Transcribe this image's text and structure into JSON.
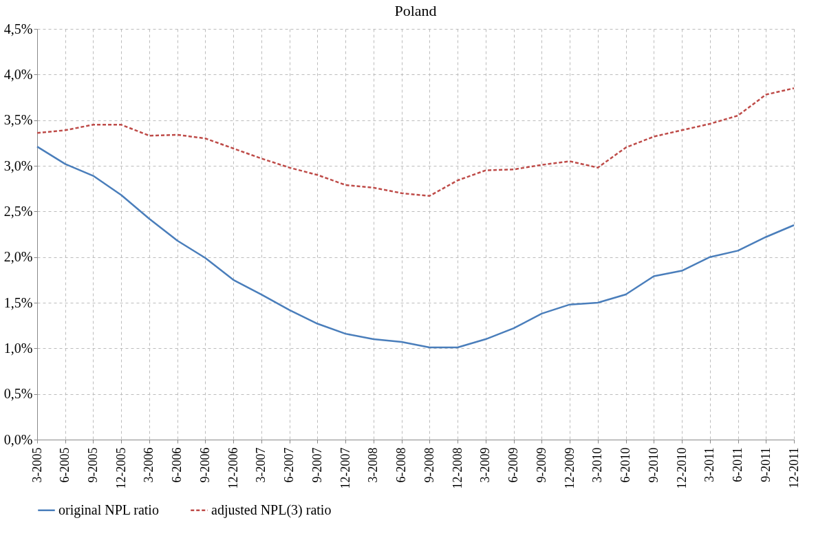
{
  "chart_data": {
    "type": "line",
    "title": "Poland",
    "categories": [
      "3-2005",
      "6-2005",
      "9-2005",
      "12-2005",
      "3-2006",
      "6-2006",
      "9-2006",
      "12-2006",
      "3-2007",
      "6-2007",
      "9-2007",
      "12-2007",
      "3-2008",
      "6-2008",
      "9-2008",
      "12-2008",
      "3-2009",
      "6-2009",
      "9-2009",
      "12-2009",
      "3-2010",
      "6-2010",
      "9-2010",
      "12-2010",
      "3-2011",
      "6-2011",
      "9-2011",
      "12-2011"
    ],
    "series": [
      {
        "name": "original NPL ratio",
        "color": "#4a7ebb",
        "line_style": "solid",
        "values": [
          3.21,
          3.02,
          2.89,
          2.68,
          2.42,
          2.18,
          1.99,
          1.75,
          1.59,
          1.42,
          1.27,
          1.16,
          1.1,
          1.07,
          1.01,
          1.01,
          1.1,
          1.22,
          1.38,
          1.48,
          1.5,
          1.59,
          1.79,
          1.85,
          2.0,
          2.07,
          2.22,
          2.35
        ]
      },
      {
        "name": "adjusted NPL(3) ratio",
        "color": "#be4b48",
        "line_style": "dashed",
        "values": [
          3.36,
          3.39,
          3.45,
          3.45,
          3.33,
          3.34,
          3.3,
          3.19,
          3.08,
          2.98,
          2.9,
          2.79,
          2.76,
          2.7,
          2.67,
          2.84,
          2.95,
          2.96,
          3.01,
          3.05,
          2.98,
          3.2,
          3.32,
          3.39,
          3.46,
          3.55,
          3.78,
          3.85
        ]
      }
    ],
    "ylim": [
      0,
      4.5
    ],
    "yticks": [
      {
        "value": 0,
        "label": "0,0%"
      },
      {
        "value": 0.5,
        "label": "0,5%"
      },
      {
        "value": 1,
        "label": "1,0%"
      },
      {
        "value": 1.5,
        "label": "1,5%"
      },
      {
        "value": 2,
        "label": "2,0%"
      },
      {
        "value": 2.5,
        "label": "2,5%"
      },
      {
        "value": 3,
        "label": "3,0%"
      },
      {
        "value": 3.5,
        "label": "3,5%"
      },
      {
        "value": 4,
        "label": "4,0%"
      },
      {
        "value": 4.5,
        "label": "4,5%"
      }
    ],
    "grid": true,
    "legend": "bottom",
    "marker": "none"
  }
}
